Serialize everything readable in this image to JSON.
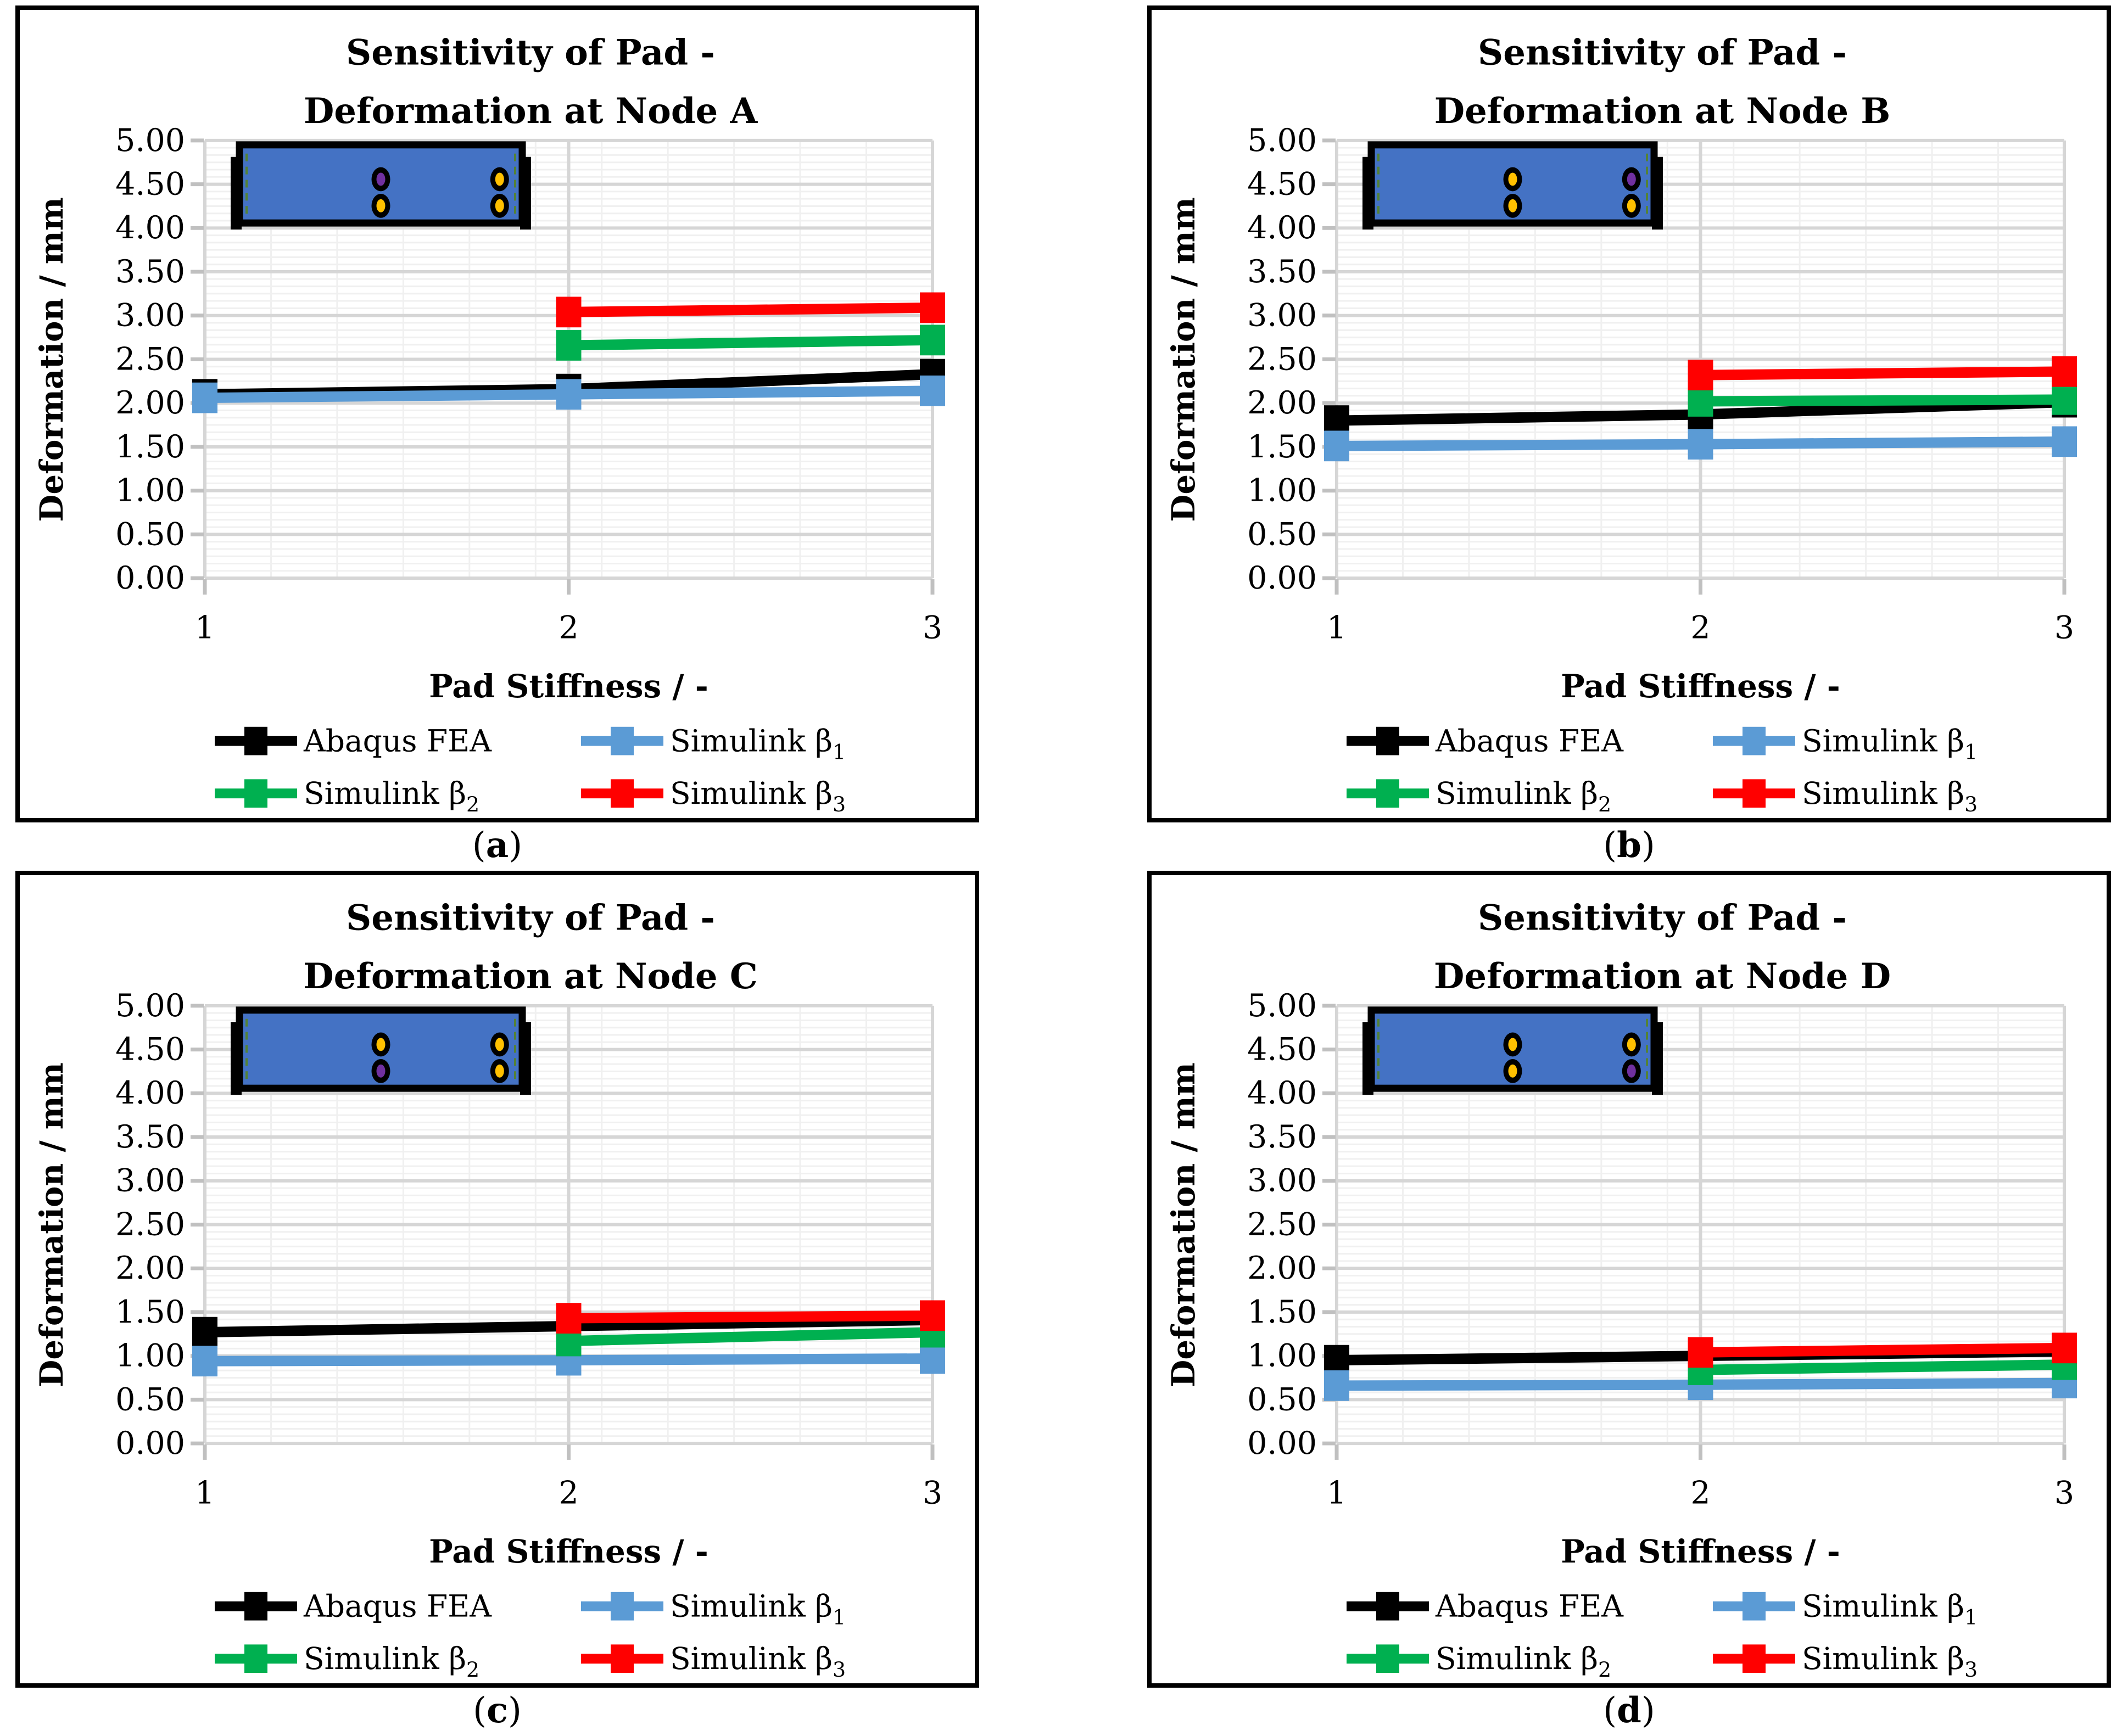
{
  "figure": {
    "layout": "2x2-panel-scientific-figure",
    "background": "#ffffff"
  },
  "shared": {
    "y_title": "Deformation / mm",
    "x_title": "Pad Stiffness / -",
    "y_ticks": [
      "0.00",
      "0.50",
      "1.00",
      "1.50",
      "2.00",
      "2.50",
      "3.00",
      "3.50",
      "4.00",
      "4.50",
      "5.00"
    ],
    "x_ticks": [
      "1",
      "2",
      "3"
    ],
    "y_range": [
      0,
      5
    ],
    "x_range": [
      1,
      3
    ],
    "grid": "major-and-minor-on",
    "legend_position": "bottom-2x2",
    "legend": [
      {
        "label": "Abaqus FEA",
        "sub": "",
        "color": "#000000"
      },
      {
        "label": "Simulink β",
        "sub": "1",
        "color": "#5B9BD5"
      },
      {
        "label": "Simulink β",
        "sub": "2",
        "color": "#00B050"
      },
      {
        "label": "Simulink β",
        "sub": "3",
        "color": "#FF0000"
      }
    ],
    "colors": {
      "pad_fill": "#4472C4",
      "pad_border": "#000000",
      "bolt_hole": "#FFC000",
      "highlight_node": "#7030A0",
      "clamp_edge_dash": "#548235",
      "grid_major": "#D6D6D6",
      "grid_minor": "#F0F0F0",
      "axis_tick": "#C0C0C0"
    }
  },
  "chart_data": [
    {
      "type": "line",
      "title": "Sensitivity of Pad - Deformation at Node A",
      "title_lines": [
        "Sensitivity of Pad -",
        "Deformation at Node A"
      ],
      "caption_open": "(",
      "caption_letter": "a",
      "caption_close": ")",
      "xlabel": "Pad Stiffness / -",
      "ylabel": "Deformation / mm",
      "x": [
        1,
        2,
        3
      ],
      "ylim": [
        0,
        5
      ],
      "inset_highlight": "top-left",
      "series": [
        {
          "name": "Abaqus FEA",
          "values": [
            2.1,
            2.16,
            2.33
          ]
        },
        {
          "name": "Simulink β1",
          "values": [
            2.06,
            2.1,
            2.14
          ]
        },
        {
          "name": "Simulink β2",
          "values": [
            null,
            2.66,
            2.72
          ]
        },
        {
          "name": "Simulink β3",
          "values": [
            null,
            3.04,
            3.09
          ]
        }
      ]
    },
    {
      "type": "line",
      "title": "Sensitivity of Pad - Deformation at Node B",
      "title_lines": [
        "Sensitivity of Pad -",
        "Deformation at Node B"
      ],
      "caption_open": "(",
      "caption_letter": "b",
      "caption_close": ")",
      "xlabel": "Pad Stiffness / -",
      "ylabel": "Deformation / mm",
      "x": [
        1,
        2,
        3
      ],
      "ylim": [
        0,
        5
      ],
      "inset_highlight": "top-right",
      "series": [
        {
          "name": "Abaqus FEA",
          "values": [
            1.8,
            1.87,
            2.01
          ]
        },
        {
          "name": "Simulink β1",
          "values": [
            1.51,
            1.53,
            1.56
          ]
        },
        {
          "name": "Simulink β2",
          "values": [
            null,
            2.02,
            2.04
          ]
        },
        {
          "name": "Simulink β3",
          "values": [
            null,
            2.32,
            2.36
          ]
        }
      ]
    },
    {
      "type": "line",
      "title": "Sensitivity of Pad - Deformation at Node C",
      "title_lines": [
        "Sensitivity of Pad -",
        "Deformation at Node C"
      ],
      "caption_open": "(",
      "caption_letter": "c",
      "caption_close": ")",
      "xlabel": "Pad Stiffness / -",
      "ylabel": "Deformation / mm",
      "x": [
        1,
        2,
        3
      ],
      "ylim": [
        0,
        5
      ],
      "inset_highlight": "bottom-left",
      "series": [
        {
          "name": "Abaqus FEA",
          "values": [
            1.27,
            1.34,
            1.41
          ]
        },
        {
          "name": "Simulink β1",
          "values": [
            0.94,
            0.95,
            0.97
          ]
        },
        {
          "name": "Simulink β2",
          "values": [
            null,
            1.17,
            1.27
          ]
        },
        {
          "name": "Simulink β3",
          "values": [
            null,
            1.43,
            1.46
          ]
        }
      ]
    },
    {
      "type": "line",
      "title": "Sensitivity of Pad - Deformation at Node D",
      "title_lines": [
        "Sensitivity of Pad -",
        "Deformation at Node D"
      ],
      "caption_open": "(",
      "caption_letter": "d",
      "caption_close": ")",
      "xlabel": "Pad Stiffness / -",
      "ylabel": "Deformation / mm",
      "x": [
        1,
        2,
        3
      ],
      "ylim": [
        0,
        5
      ],
      "inset_highlight": "bottom-right",
      "series": [
        {
          "name": "Abaqus FEA",
          "values": [
            0.95,
            1.0,
            1.05
          ]
        },
        {
          "name": "Simulink β1",
          "values": [
            0.66,
            0.67,
            0.69
          ]
        },
        {
          "name": "Simulink β2",
          "values": [
            null,
            0.84,
            0.9
          ]
        },
        {
          "name": "Simulink β3",
          "values": [
            null,
            1.04,
            1.09
          ]
        }
      ]
    }
  ]
}
